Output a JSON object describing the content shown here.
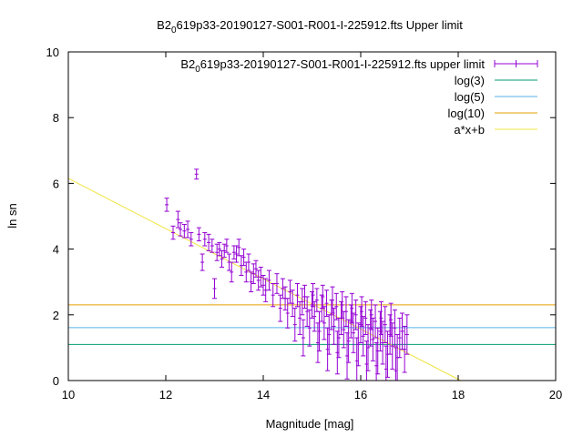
{
  "chart_data": {
    "type": "scatter",
    "title_main": "B2",
    "title_sub": "0",
    "title_rest": "619p33-20190127-S001-R001-I-225912.fts Upper limit",
    "xlabel": "Magnitude [mag]",
    "ylabel": "ln sn",
    "xlim": [
      10,
      20
    ],
    "ylim": [
      0,
      10
    ],
    "x_ticks": [
      10,
      12,
      14,
      16,
      18,
      20
    ],
    "y_ticks": [
      0,
      2,
      4,
      6,
      8,
      10
    ],
    "x_tick_labels": [
      "10",
      "12",
      "14",
      "16",
      "18",
      "20"
    ],
    "y_tick_labels": [
      "0",
      "2",
      "4",
      "6",
      "8",
      "10"
    ],
    "grid": false,
    "legend_position": "top-right",
    "legend": [
      {
        "label_main": "B2",
        "label_sub": "0",
        "label_rest": "619p33-20190127-S001-R001-I-225912.fts upper limit",
        "color": "#9400d3",
        "kind": "errorbars"
      },
      {
        "label": "log(3)",
        "color": "#009e73",
        "kind": "line"
      },
      {
        "label": "log(5)",
        "color": "#56b4e9",
        "kind": "line"
      },
      {
        "label": "log(10)",
        "color": "#e69f00",
        "kind": "line"
      },
      {
        "label": "a*x+b",
        "color": "#f0e442",
        "kind": "line"
      }
    ],
    "hlines": [
      {
        "name": "log(3)",
        "y": 1.0986,
        "color": "#009e73"
      },
      {
        "name": "log(5)",
        "y": 1.6094,
        "color": "#56b4e9"
      },
      {
        "name": "log(10)",
        "y": 2.3026,
        "color": "#e69f00"
      }
    ],
    "fit_line": {
      "name": "a*x+b",
      "points": [
        [
          10,
          6.15
        ],
        [
          18.05,
          0
        ]
      ],
      "color": "#f0e442"
    },
    "series": [
      {
        "name": "B2 0 619p33-20190127-S001-R001-I-225912.fts upper limit",
        "color": "#9400d3",
        "points": [
          [
            12.02,
            5.35,
            0.2
          ],
          [
            12.15,
            4.5,
            0.2
          ],
          [
            12.25,
            4.9,
            0.25
          ],
          [
            12.3,
            4.6,
            0.2
          ],
          [
            12.38,
            4.55,
            0.2
          ],
          [
            12.45,
            4.6,
            0.25
          ],
          [
            12.52,
            4.3,
            0.2
          ],
          [
            12.63,
            6.28,
            0.15
          ],
          [
            12.68,
            4.45,
            0.2
          ],
          [
            12.75,
            3.6,
            0.25
          ],
          [
            12.8,
            4.3,
            0.2
          ],
          [
            12.88,
            4.2,
            0.25
          ],
          [
            12.95,
            4.1,
            0.2
          ],
          [
            13.0,
            2.8,
            0.3
          ],
          [
            13.05,
            3.9,
            0.25
          ],
          [
            13.1,
            4.0,
            0.2
          ],
          [
            13.15,
            3.7,
            0.25
          ],
          [
            13.2,
            3.95,
            0.2
          ],
          [
            13.25,
            4.1,
            0.2
          ],
          [
            13.3,
            3.6,
            0.25
          ],
          [
            13.35,
            3.3,
            0.3
          ],
          [
            13.4,
            3.9,
            0.2
          ],
          [
            13.45,
            3.85,
            0.25
          ],
          [
            13.5,
            4.05,
            0.25
          ],
          [
            13.55,
            3.5,
            0.3
          ],
          [
            13.6,
            3.75,
            0.25
          ],
          [
            13.65,
            3.3,
            0.3
          ],
          [
            13.7,
            3.6,
            0.25
          ],
          [
            13.75,
            3.0,
            0.3
          ],
          [
            13.8,
            3.25,
            0.3
          ],
          [
            13.85,
            3.4,
            0.25
          ],
          [
            13.9,
            3.05,
            0.3
          ],
          [
            13.95,
            3.15,
            0.3
          ],
          [
            14.0,
            2.9,
            0.3
          ],
          [
            14.05,
            2.75,
            0.35
          ],
          [
            14.12,
            3.05,
            0.3
          ],
          [
            14.2,
            2.6,
            0.35
          ],
          [
            14.28,
            2.95,
            0.3
          ],
          [
            14.35,
            2.2,
            0.4
          ],
          [
            14.4,
            2.8,
            0.3
          ],
          [
            14.45,
            2.5,
            0.35
          ],
          [
            14.5,
            2.05,
            0.45
          ],
          [
            14.55,
            2.7,
            0.35
          ],
          [
            14.6,
            2.35,
            0.4
          ],
          [
            14.65,
            1.7,
            0.5
          ],
          [
            14.7,
            2.6,
            0.35
          ],
          [
            14.75,
            1.9,
            0.5
          ],
          [
            14.8,
            2.4,
            0.4
          ],
          [
            14.85,
            2.55,
            0.35
          ],
          [
            14.9,
            2.1,
            0.45
          ],
          [
            14.95,
            1.6,
            0.55
          ],
          [
            15.0,
            2.3,
            0.4
          ],
          [
            15.05,
            1.95,
            0.45
          ],
          [
            15.1,
            2.45,
            0.35
          ],
          [
            15.15,
            1.5,
            0.6
          ],
          [
            15.2,
            2.2,
            0.4
          ],
          [
            15.25,
            1.75,
            0.5
          ],
          [
            15.3,
            2.35,
            0.4
          ],
          [
            15.35,
            1.4,
            0.6
          ],
          [
            15.4,
            2.0,
            0.45
          ],
          [
            15.45,
            1.65,
            0.55
          ],
          [
            15.5,
            2.25,
            0.4
          ],
          [
            15.55,
            1.3,
            0.6
          ],
          [
            15.6,
            1.9,
            0.5
          ],
          [
            15.65,
            1.55,
            0.55
          ],
          [
            15.7,
            2.1,
            0.45
          ],
          [
            15.75,
            1.2,
            0.65
          ],
          [
            15.8,
            1.8,
            0.5
          ],
          [
            15.85,
            1.45,
            0.6
          ],
          [
            15.9,
            2.0,
            0.45
          ],
          [
            15.95,
            1.1,
            0.65
          ],
          [
            16.0,
            1.7,
            0.55
          ],
          [
            16.05,
            1.35,
            0.6
          ],
          [
            16.1,
            1.9,
            0.5
          ],
          [
            16.15,
            1.0,
            0.7
          ],
          [
            16.2,
            1.6,
            0.55
          ],
          [
            16.25,
            1.25,
            0.65
          ],
          [
            16.3,
            1.8,
            0.5
          ],
          [
            16.35,
            0.9,
            0.7
          ],
          [
            16.4,
            1.5,
            0.6
          ],
          [
            16.45,
            1.15,
            0.65
          ],
          [
            16.5,
            1.7,
            0.55
          ],
          [
            16.55,
            0.8,
            0.7
          ],
          [
            16.6,
            1.4,
            0.6
          ],
          [
            16.65,
            1.05,
            0.7
          ],
          [
            16.7,
            1.6,
            0.55
          ],
          [
            16.75,
            0.7,
            0.7
          ],
          [
            16.8,
            1.3,
            0.6
          ],
          [
            16.85,
            1.5,
            0.55
          ],
          [
            16.9,
            0.95,
            0.7
          ],
          [
            16.95,
            1.4,
            0.6
          ],
          [
            15.02,
            2.6,
            0.35
          ],
          [
            15.22,
            2.55,
            0.35
          ],
          [
            15.42,
            2.45,
            0.4
          ],
          [
            15.62,
            2.3,
            0.4
          ],
          [
            15.82,
            2.2,
            0.45
          ],
          [
            16.02,
            2.1,
            0.45
          ],
          [
            16.22,
            2.0,
            0.45
          ],
          [
            16.42,
            1.9,
            0.5
          ],
          [
            16.62,
            1.85,
            0.5
          ],
          [
            14.82,
            1.3,
            0.55
          ],
          [
            15.12,
            1.15,
            0.6
          ],
          [
            15.32,
            0.95,
            0.65
          ],
          [
            15.52,
            0.85,
            0.65
          ],
          [
            15.72,
            0.75,
            0.7
          ],
          [
            15.92,
            0.6,
            0.7
          ],
          [
            16.12,
            0.5,
            0.7
          ],
          [
            16.32,
            0.45,
            0.7
          ],
          [
            16.52,
            0.35,
            0.7
          ],
          [
            16.72,
            0.3,
            0.7
          ]
        ]
      }
    ]
  }
}
